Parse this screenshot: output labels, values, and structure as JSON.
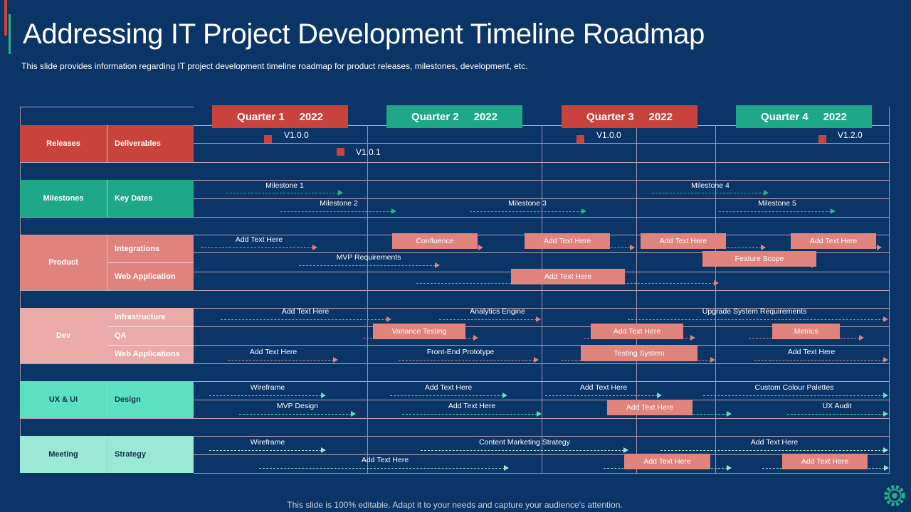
{
  "title": "Addressing IT Project Development Timeline Roadmap",
  "subtitle": "This slide provides information regarding IT project development timeline roadmap for product releases, milestones, development, etc.",
  "footer": "This slide is 100% editable. Adapt it to your needs and capture your audience’s attention.",
  "colors": {
    "background": "#0b3467",
    "red": "#c9433d",
    "teal": "#27b28a",
    "pink": "#e0837d",
    "line": "#b7a2b6"
  },
  "quarters": [
    {
      "label": "Quarter 1     2022",
      "color": "#c9433d"
    },
    {
      "label": "Quarter 2     2022",
      "color": "#1fa888"
    },
    {
      "label": "Quarter 3     2022",
      "color": "#c9433d"
    },
    {
      "label": "Quarter 4     2022",
      "color": "#1fa888"
    }
  ],
  "categories": [
    {
      "name": "Releases",
      "color": "#c9433d",
      "dark": false,
      "subs": [
        "Deliverables"
      ]
    },
    {
      "name": "Milestones",
      "color": "#1fa888",
      "dark": false,
      "subs": [
        "Key Dates"
      ]
    },
    {
      "name": "Product",
      "color": "#e0837d",
      "dark": false,
      "subs": [
        "Integrations",
        "Web Application"
      ]
    },
    {
      "name": "Dev",
      "color": "#e9aaa8",
      "dark": false,
      "subs": [
        "Infrastructure",
        "QA",
        "Web Applications"
      ]
    },
    {
      "name": "UX & UI",
      "color": "#5de0c0",
      "dark": true,
      "subs": [
        "Design"
      ]
    },
    {
      "name": "Meeting",
      "color": "#9be8d4",
      "dark": true,
      "subs": [
        "Strategy"
      ]
    }
  ],
  "releases": [
    {
      "label": "V1.0.0"
    },
    {
      "label": "V1.0.1"
    },
    {
      "label": "V1.0.0"
    },
    {
      "label": "V1.2.0"
    }
  ],
  "tasks": [
    {
      "label": "Milestone 1",
      "type": "text",
      "color": "#27b28a"
    },
    {
      "label": "Milestone 2",
      "type": "text",
      "color": "#27b28a"
    },
    {
      "label": "Milestone 3",
      "type": "text",
      "color": "#27b28a"
    },
    {
      "label": "Milestone 4",
      "type": "text",
      "color": "#27b28a"
    },
    {
      "label": "Milestone 5",
      "type": "text",
      "color": "#27b28a"
    },
    {
      "label": "Add Text Here",
      "type": "text",
      "color": "#e0837d"
    },
    {
      "label": "Confluence",
      "type": "box",
      "color": "#e0837d"
    },
    {
      "label": "Add Text Here",
      "type": "box",
      "color": "#e0837d"
    },
    {
      "label": "Add Text Here",
      "type": "box",
      "color": "#e0837d"
    },
    {
      "label": "Add Text Here",
      "type": "box",
      "color": "#e0837d"
    },
    {
      "label": "MVP Requirements",
      "type": "text",
      "color": "#e0837d"
    },
    {
      "label": "Feature Scope",
      "type": "box",
      "color": "#e0837d"
    },
    {
      "label": "Add Text Here",
      "type": "box",
      "color": "#e0837d"
    },
    {
      "label": "Add Text Here",
      "type": "text",
      "color": "#e0837d"
    },
    {
      "label": "Analytics Engine",
      "type": "text",
      "color": "#e0837d"
    },
    {
      "label": "Upgrade System Requirements",
      "type": "text",
      "color": "#e0837d"
    },
    {
      "label": "Variance Testing",
      "type": "box",
      "color": "#e0837d"
    },
    {
      "label": "Add Text Here",
      "type": "box",
      "color": "#e0837d"
    },
    {
      "label": "Metrics",
      "type": "box",
      "color": "#e0837d"
    },
    {
      "label": "Add Text Here",
      "type": "text",
      "color": "#e0837d"
    },
    {
      "label": "Front-End Prototype",
      "type": "text",
      "color": "#e0837d"
    },
    {
      "label": "Testing System",
      "type": "box",
      "color": "#e0837d"
    },
    {
      "label": "Add Text Here",
      "type": "text",
      "color": "#e0837d"
    },
    {
      "label": "Wireframe",
      "type": "text",
      "color": "#5de0c0"
    },
    {
      "label": "Add Text Here",
      "type": "text",
      "color": "#5de0c0"
    },
    {
      "label": "Add Text Here",
      "type": "text",
      "color": "#5de0c0"
    },
    {
      "label": "Custom Colour Palettes",
      "type": "text",
      "color": "#5de0c0"
    },
    {
      "label": "MVP Design",
      "type": "text",
      "color": "#5de0c0"
    },
    {
      "label": "Add Text Here",
      "type": "text",
      "color": "#5de0c0"
    },
    {
      "label": "Add Text Here",
      "type": "box",
      "color": "#5de0c0"
    },
    {
      "label": "UX Audit",
      "type": "text",
      "color": "#5de0c0"
    },
    {
      "label": "Wireframe",
      "type": "text",
      "color": "#9be8d4"
    },
    {
      "label": "Content Marketing Strategy",
      "type": "text",
      "color": "#9be8d4"
    },
    {
      "label": "Add Text Here",
      "type": "text",
      "color": "#9be8d4"
    },
    {
      "label": "Add Text Here",
      "type": "text",
      "color": "#9be8d4"
    },
    {
      "label": "Add Text Here",
      "type": "box",
      "color": "#9be8d4"
    },
    {
      "label": "Add Text Here",
      "type": "box",
      "color": "#9be8d4"
    }
  ]
}
